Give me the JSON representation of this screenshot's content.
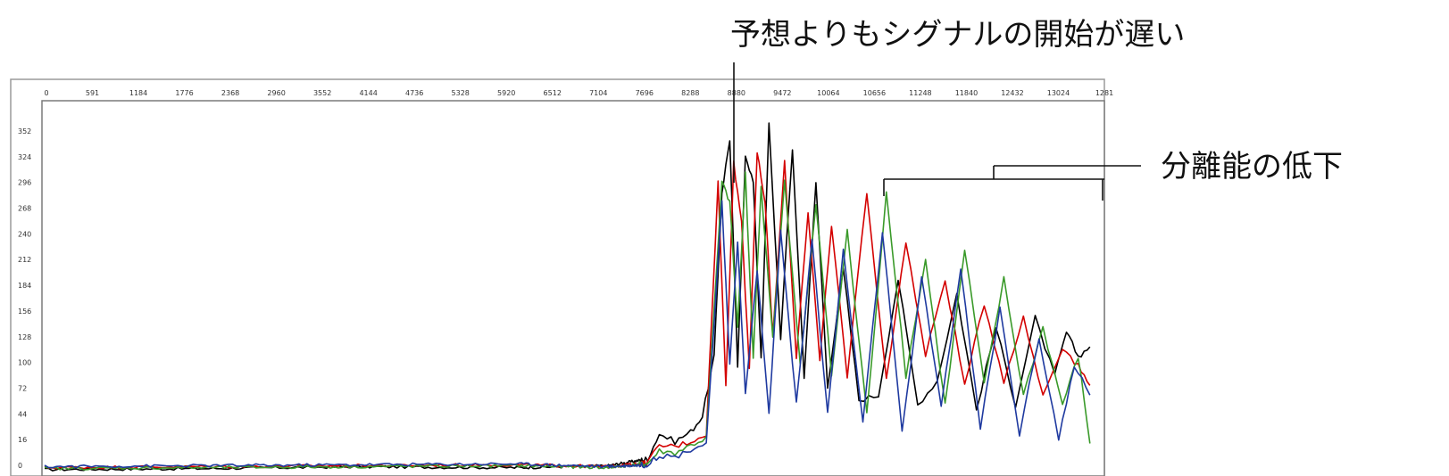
{
  "chart_data": {
    "type": "line",
    "title": "",
    "xlabel": "",
    "ylabel": "",
    "x_tick_labels": [
      "0",
      "591",
      "1184",
      "1776",
      "2368",
      "2960",
      "3552",
      "4144",
      "4736",
      "5328",
      "5920",
      "6512",
      "7104",
      "7696",
      "8288",
      "8880",
      "9472",
      "10064",
      "10656",
      "11248",
      "11840",
      "12432",
      "13024",
      "1281"
    ],
    "y_tick_labels": [
      "352",
      "324",
      "296",
      "268",
      "240",
      "212",
      "184",
      "156",
      "128",
      "100",
      "72",
      "44",
      "16",
      "0"
    ],
    "xlim": [
      0,
      13500
    ],
    "ylim": [
      0,
      380
    ],
    "series": [
      {
        "color": "#000000",
        "x": [
          0,
          2000,
          4000,
          6000,
          7200,
          7700,
          7850,
          8050,
          8250,
          8400,
          8550,
          8650,
          8750,
          8850,
          8950,
          9050,
          9150,
          9250,
          9400,
          9550,
          9700,
          9850,
          10000,
          10200,
          10400,
          10650,
          10900,
          11150,
          11400,
          11650,
          11900,
          12150,
          12400,
          12650,
          12900,
          13050,
          13200,
          13350
        ],
        "values": [
          3,
          4,
          6,
          5,
          7,
          14,
          40,
          32,
          42,
          58,
          120,
          290,
          345,
          110,
          330,
          300,
          120,
          360,
          140,
          335,
          100,
          300,
          90,
          210,
          75,
          80,
          200,
          70,
          95,
          185,
          65,
          150,
          70,
          160,
          100,
          145,
          120,
          130
        ]
      },
      {
        "color": "#d40000",
        "x": [
          0,
          2000,
          4000,
          6000,
          7200,
          7700,
          7850,
          8050,
          8250,
          8450,
          8600,
          8700,
          8800,
          8900,
          9000,
          9100,
          9200,
          9300,
          9450,
          9600,
          9750,
          9900,
          10050,
          10250,
          10500,
          10750,
          11000,
          11250,
          11500,
          11750,
          12000,
          12250,
          12500,
          12750,
          13000,
          13200,
          13350
        ],
        "values": [
          5,
          6,
          7,
          8,
          6,
          10,
          28,
          27,
          32,
          40,
          300,
          90,
          320,
          260,
          110,
          330,
          280,
          140,
          320,
          120,
          270,
          115,
          255,
          100,
          290,
          95,
          240,
          120,
          200,
          90,
          175,
          95,
          160,
          80,
          130,
          110,
          90
        ]
      },
      {
        "color": "#3a9a2a",
        "x": [
          0,
          2000,
          4000,
          6000,
          7200,
          7700,
          7850,
          8050,
          8250,
          8450,
          8650,
          8750,
          8850,
          8950,
          9050,
          9150,
          9300,
          9450,
          9650,
          9850,
          10050,
          10250,
          10500,
          10750,
          11000,
          11250,
          11500,
          11750,
          12000,
          12250,
          12500,
          12750,
          13000,
          13200,
          13350
        ],
        "values": [
          4,
          5,
          6,
          7,
          5,
          9,
          22,
          20,
          28,
          35,
          300,
          280,
          150,
          310,
          120,
          295,
          140,
          300,
          110,
          280,
          100,
          250,
          60,
          290,
          100,
          220,
          70,
          230,
          90,
          200,
          80,
          150,
          70,
          120,
          30
        ]
      },
      {
        "color": "#1f3aa0",
        "x": [
          0,
          2000,
          4000,
          6000,
          7200,
          7700,
          7850,
          8050,
          8250,
          8450,
          8650,
          8750,
          8850,
          8950,
          9100,
          9250,
          9400,
          9600,
          9800,
          10000,
          10200,
          10450,
          10700,
          10950,
          11200,
          11450,
          11700,
          11950,
          12200,
          12450,
          12700,
          12950,
          13150,
          13350
        ],
        "values": [
          6,
          7,
          8,
          9,
          6,
          8,
          18,
          16,
          24,
          30,
          280,
          110,
          240,
          80,
          210,
          60,
          250,
          70,
          240,
          60,
          230,
          50,
          250,
          40,
          200,
          70,
          210,
          45,
          170,
          40,
          140,
          35,
          110,
          80
        ]
      }
    ]
  },
  "annotations": {
    "late_signal": "予想よりもシグナルの開始が遅い",
    "low_resolution": "分離能の低下"
  }
}
